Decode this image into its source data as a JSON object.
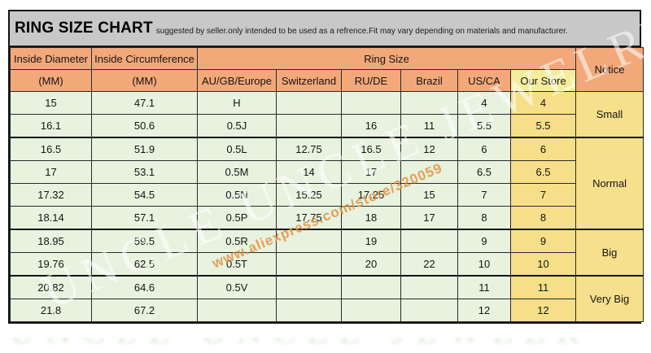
{
  "header": {
    "title": "RING SIZE CHART",
    "subtitle": "suggested by seller.only intended to be used as a refrence.Fit may vary depending on materials and manufacturer."
  },
  "table": {
    "inside_diameter_label": "Inside Diameter",
    "inside_circumference_label": "Inside Circumference",
    "ring_size_label": "Ring Size",
    "notice_label": "Notice",
    "unit": "(MM)",
    "ring_size_columns": [
      "AU/GB/Europe",
      "Switzerland",
      "RU/DE",
      "Brazil",
      "US/CA",
      "Our Store"
    ]
  },
  "chart_data": {
    "type": "table",
    "title": "RING SIZE CHART",
    "columns": [
      "Inside Diameter (MM)",
      "Inside Circumference (MM)",
      "AU/GB/Europe",
      "Switzerland",
      "RU/DE",
      "Brazil",
      "US/CA",
      "Our Store",
      "Notice"
    ],
    "rows": [
      [
        "15",
        "47.1",
        "H",
        "",
        "",
        "",
        "4",
        "4",
        "Small"
      ],
      [
        "16.1",
        "50.6",
        "0.5J",
        "",
        "16",
        "11",
        "5.5",
        "5.5",
        "Small"
      ],
      [
        "16.5",
        "51.9",
        "0.5L",
        "12.75",
        "16.5",
        "12",
        "6",
        "6",
        "Normal"
      ],
      [
        "17",
        "53.1",
        "0.5M",
        "14",
        "17",
        "",
        "6.5",
        "6.5",
        "Normal"
      ],
      [
        "17.32",
        "54.5",
        "0.5N",
        "15.25",
        "17.25",
        "15",
        "7",
        "7",
        "Normal"
      ],
      [
        "18.14",
        "57.1",
        "0.5P",
        "17.75",
        "18",
        "17",
        "8",
        "8",
        "Normal"
      ],
      [
        "18.95",
        "59.5",
        "0.5R",
        "",
        "19",
        "",
        "9",
        "9",
        "Big"
      ],
      [
        "19.76",
        "62.5",
        "0.5T",
        "",
        "20",
        "22",
        "10",
        "10",
        "Big"
      ],
      [
        "20.82",
        "64.6",
        "0.5V",
        "",
        "",
        "",
        "11",
        "11",
        "Very Big"
      ],
      [
        "21.8",
        "67.2",
        "",
        "",
        "",
        "",
        "12",
        "12",
        "Very Big"
      ]
    ]
  },
  "watermarks": {
    "store_name": "UNCLE UNCLE JEWELRY",
    "store_url": "www.aliexpress.com/store/320059"
  },
  "colors": {
    "title_bar_gray": "#c8c8c8",
    "header_salmon": "#f3a87a",
    "cell_green": "#e7f2df",
    "cell_yellow": "#f6df88",
    "our_store_header_yellow": "#f5ed9e",
    "border_black": "#141414"
  }
}
